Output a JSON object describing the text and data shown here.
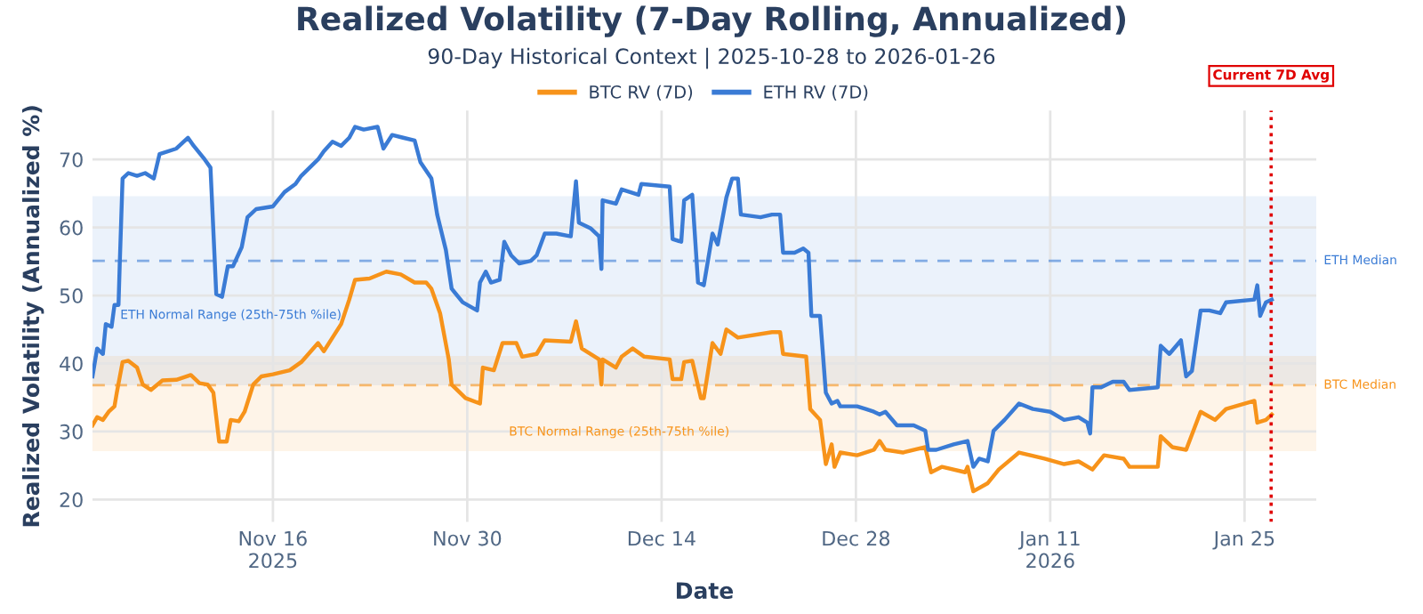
{
  "chart_data": {
    "type": "line",
    "title": "Realized Volatility (7-Day Rolling, Annualized)",
    "subtitle": "90-Day Historical Context | 2025-10-28 to 2026-01-26",
    "xlabel": "Date",
    "ylabel": "Realized Volatility (Annualized %)",
    "xlim": [
      "2025-11-03T00:00",
      "2026-01-30T04:00"
    ],
    "ylim": [
      16.7,
      77.2
    ],
    "yticks": [
      20,
      30,
      40,
      50,
      60,
      70
    ],
    "xticks": [
      {
        "value": "2025-11-16",
        "label": "Nov 16\n2025"
      },
      {
        "value": "2025-11-30",
        "label": "Nov 30"
      },
      {
        "value": "2025-12-14",
        "label": "Dec 14"
      },
      {
        "value": "2025-12-28",
        "label": "Dec 28"
      },
      {
        "value": "2026-01-11",
        "label": "Jan 11\n2026"
      },
      {
        "value": "2026-01-25",
        "label": "Jan 25"
      }
    ],
    "grid": true,
    "legend": "top",
    "line_style": "solid",
    "bands": [
      {
        "axis": "y",
        "from": 36.8,
        "to": 64.6,
        "label": "ETH Normal Range (25th-75th %ile)",
        "color": "#3a7bd5"
      },
      {
        "axis": "y",
        "from": 27.1,
        "to": 41.1,
        "label": "BTC Normal Range (25th-75th %ile)",
        "color": "#f7931a"
      }
    ],
    "ref_lines": [
      {
        "axis": "y",
        "value": 55.1,
        "label": "ETH Median",
        "color": "#3a7bd5",
        "line_style": "dashed"
      },
      {
        "axis": "y",
        "value": 36.8,
        "label": "BTC Median",
        "color": "#f7931a",
        "line_style": "dashed"
      },
      {
        "axis": "x",
        "value": "2026-01-26T22:00",
        "label": "Current 7D Avg",
        "color": "#e00000",
        "line_style": "dotted"
      }
    ],
    "series": [
      {
        "name": "BTC RV (7D)",
        "color": "#f7931a",
        "x": [
          "2025-11-03T00:00",
          "2025-11-03T08:00",
          "2025-11-03T18:00",
          "2025-11-04T04:00",
          "2025-11-04T14:00",
          "2025-11-04T18:00",
          "2025-11-05T04:00",
          "2025-11-05T14:00",
          "2025-11-06T05:00",
          "2025-11-06T15:00",
          "2025-11-07T05:00",
          "2025-11-08T01:00",
          "2025-11-09T01:00",
          "2025-11-10T02:00",
          "2025-11-10T17:00",
          "2025-11-11T07:00",
          "2025-11-11T17:00",
          "2025-11-12T03:00",
          "2025-11-12T16:00",
          "2025-11-12T23:00",
          "2025-11-13T13:00",
          "2025-11-13T23:00",
          "2025-11-14T14:00",
          "2025-11-15T04:00",
          "2025-11-16T00:00",
          "2025-11-17T05:00",
          "2025-11-18T01:00",
          "2025-11-19T06:00",
          "2025-11-19T16:00",
          "2025-11-20T07:00",
          "2025-11-20T22:00",
          "2025-11-21T12:00",
          "2025-11-21T22:00",
          "2025-11-22T23:00",
          "2025-11-24T04:00",
          "2025-11-25T05:00",
          "2025-11-26T05:00",
          "2025-11-27T01:00",
          "2025-11-27T10:00",
          "2025-11-28T01:00",
          "2025-11-28T16:00",
          "2025-11-28T21:00",
          "2025-11-29T21:00",
          "2025-11-30T22:00",
          "2025-12-01T03:00",
          "2025-12-01T22:00",
          "2025-12-02T13:00",
          "2025-12-03T13:00",
          "2025-12-03T23:00",
          "2025-12-05T00:00",
          "2025-12-05T14:00",
          "2025-12-07T11:00",
          "2025-12-07T20:00",
          "2025-12-08T06:00",
          "2025-12-09T12:00",
          "2025-12-09T16:00",
          "2025-12-09T18:00",
          "2025-12-10T17:00",
          "2025-12-11T03:00",
          "2025-12-11T22:00",
          "2025-12-12T18:00",
          "2025-12-14T14:00",
          "2025-12-14T19:00",
          "2025-12-15T10:00",
          "2025-12-15T15:00",
          "2025-12-16T05:00",
          "2025-12-16T20:00",
          "2025-12-17T01:00",
          "2025-12-17T16:00",
          "2025-12-18T06:00",
          "2025-12-18T16:00",
          "2025-12-19T12:00",
          "2025-12-21T23:00",
          "2025-12-22T13:00",
          "2025-12-22T18:00",
          "2025-12-24T10:00",
          "2025-12-24T17:00",
          "2025-12-25T10:00",
          "2025-12-25T20:00",
          "2025-12-26T06:00",
          "2025-12-26T11:00",
          "2025-12-26T21:00",
          "2025-12-28T02:00",
          "2025-12-29T07:00",
          "2025-12-29T17:00",
          "2025-12-30T03:00",
          "2025-12-31T09:00",
          "2026-01-02T00:00",
          "2026-01-02T10:00",
          "2026-01-03T05:00",
          "2026-01-04T21:00",
          "2026-01-05T01:00",
          "2026-01-05T11:00",
          "2026-01-06T12:00",
          "2026-01-07T07:00",
          "2026-01-08T18:00",
          "2026-01-10T14:00",
          "2026-01-12T00:00",
          "2026-01-13T01:00",
          "2026-01-14T01:00",
          "2026-01-14T21:00",
          "2026-01-16T07:00",
          "2026-01-16T17:00",
          "2026-01-18T18:00",
          "2026-01-18T23:00",
          "2026-01-19T19:00",
          "2026-01-20T19:00",
          "2026-01-21T20:00",
          "2026-01-22T21:00",
          "2026-01-23T16:00",
          "2026-01-25T17:00",
          "2026-01-25T22:00",
          "2026-01-26T13:00",
          "2026-01-26T23:00"
        ],
        "values": [
          30.9,
          32.1,
          31.7,
          32.9,
          33.7,
          35.7,
          40.2,
          40.4,
          39.4,
          36.9,
          36.1,
          37.5,
          37.6,
          38.3,
          37.1,
          36.9,
          35.7,
          28.5,
          28.5,
          31.7,
          31.5,
          32.9,
          36.9,
          38.1,
          38.4,
          39.0,
          40.2,
          43.0,
          41.8,
          43.8,
          45.8,
          49.4,
          52.3,
          52.5,
          53.5,
          53.1,
          51.9,
          51.9,
          51.0,
          47.4,
          40.6,
          36.9,
          34.9,
          34.1,
          39.4,
          39.0,
          43.0,
          43.0,
          41.0,
          41.4,
          43.4,
          43.2,
          46.2,
          42.2,
          40.6,
          36.9,
          40.6,
          39.4,
          41.0,
          42.2,
          41.0,
          40.6,
          37.7,
          37.7,
          40.2,
          40.4,
          34.9,
          34.9,
          43.0,
          41.4,
          45.0,
          43.8,
          44.6,
          44.6,
          41.4,
          41.0,
          33.3,
          31.7,
          25.2,
          28.1,
          24.8,
          26.9,
          26.5,
          27.3,
          28.6,
          27.3,
          26.9,
          27.7,
          24.0,
          24.8,
          24.0,
          24.8,
          21.2,
          22.4,
          24.4,
          26.9,
          26.0,
          25.2,
          25.6,
          24.4,
          26.5,
          26.0,
          24.8,
          24.8,
          29.3,
          27.7,
          27.3,
          32.9,
          31.7,
          33.3,
          34.5,
          31.3,
          31.7,
          32.5
        ]
      },
      {
        "name": "ETH RV (7D)",
        "color": "#3a7bd5",
        "x": [
          "2025-11-03T00:00",
          "2025-11-03T08:00",
          "2025-11-03T18:00",
          "2025-11-03T23:00",
          "2025-11-04T09:00",
          "2025-11-04T14:00",
          "2025-11-04T21:00",
          "2025-11-04T23:00",
          "2025-11-05T04:00",
          "2025-11-05T14:00",
          "2025-11-06T05:00",
          "2025-11-06T19:00",
          "2025-11-07T10:00",
          "2025-11-07T20:00",
          "2025-11-09T01:00",
          "2025-11-09T21:00",
          "2025-11-10T07:00",
          "2025-11-11T02:00",
          "2025-11-11T12:00",
          "2025-11-11T22:00",
          "2025-11-12T08:00",
          "2025-11-12T18:00",
          "2025-11-13T03:00",
          "2025-11-13T18:00",
          "2025-11-14T04:00",
          "2025-11-14T19:00",
          "2025-11-16T00:00",
          "2025-11-16T20:00",
          "2025-11-17T15:00",
          "2025-11-18T01:00",
          "2025-11-19T06:00",
          "2025-11-19T16:00",
          "2025-11-20T07:00",
          "2025-11-20T22:00",
          "2025-11-21T12:00",
          "2025-11-21T22:00",
          "2025-11-22T13:00",
          "2025-11-23T13:00",
          "2025-11-23T23:00",
          "2025-11-24T14:00",
          "2025-11-25T09:00",
          "2025-11-26T05:00",
          "2025-11-26T15:00",
          "2025-11-27T10:00",
          "2025-11-27T20:00",
          "2025-11-28T11:00",
          "2025-11-28T21:00",
          "2025-11-29T16:00",
          "2025-11-30T17:00",
          "2025-11-30T22:00",
          "2025-12-01T08:00",
          "2025-12-01T17:00",
          "2025-12-02T08:00",
          "2025-12-02T16:00",
          "2025-12-03T04:00",
          "2025-12-03T18:00",
          "2025-12-04T14:00",
          "2025-12-05T00:00",
          "2025-12-05T14:00",
          "2025-12-06T10:00",
          "2025-12-07T11:00",
          "2025-12-07T20:00",
          "2025-12-08T01:00",
          "2025-12-08T21:00",
          "2025-12-09T12:00",
          "2025-12-09T16:00",
          "2025-12-09T18:00",
          "2025-12-10T17:00",
          "2025-12-11T03:00",
          "2025-12-12T08:00",
          "2025-12-12T13:00",
          "2025-12-14T14:00",
          "2025-12-14T19:00",
          "2025-12-15T10:00",
          "2025-12-15T15:00",
          "2025-12-16T05:00",
          "2025-12-16T15:00",
          "2025-12-17T01:00",
          "2025-12-17T16:00",
          "2025-12-18T01:00",
          "2025-12-18T16:00",
          "2025-12-19T02:00",
          "2025-12-19T12:00",
          "2025-12-19T17:00",
          "2025-12-21T03:00",
          "2025-12-21T23:00",
          "2025-12-22T13:00",
          "2025-12-22T18:00",
          "2025-12-23T14:00",
          "2025-12-24T05:00",
          "2025-12-24T14:00",
          "2025-12-24T19:00",
          "2025-12-25T10:00",
          "2025-12-25T20:00",
          "2025-12-26T06:00",
          "2025-12-26T16:00",
          "2025-12-26T21:00",
          "2025-12-28T02:00",
          "2025-12-28T17:00",
          "2025-12-29T07:00",
          "2025-12-29T17:00",
          "2025-12-30T03:00",
          "2025-12-30T23:00",
          "2026-01-01T04:00",
          "2026-01-02T00:00",
          "2026-01-02T05:00",
          "2026-01-02T19:00",
          "2026-01-04T01:00",
          "2026-01-05T01:00",
          "2026-01-05T11:00",
          "2026-01-05T21:00",
          "2026-01-06T12:00",
          "2026-01-06T22:00",
          "2026-01-07T17:00",
          "2026-01-08T18:00",
          "2026-01-09T18:00",
          "2026-01-11T00:00",
          "2026-01-12T00:00",
          "2026-01-13T01:00",
          "2026-01-13T16:00",
          "2026-01-13T21:00",
          "2026-01-14T01:00",
          "2026-01-14T16:00",
          "2026-01-15T12:00",
          "2026-01-16T07:00",
          "2026-01-16T17:00",
          "2026-01-18T18:00",
          "2026-01-18T23:00",
          "2026-01-19T14:00",
          "2026-01-20T10:00",
          "2026-01-20T19:00",
          "2026-01-21T05:00",
          "2026-01-21T20:00",
          "2026-01-22T11:00",
          "2026-01-23T06:00",
          "2026-01-23T16:00",
          "2026-01-25T17:00",
          "2026-01-25T22:00",
          "2026-01-26T03:00",
          "2026-01-26T13:00",
          "2026-01-26T23:00"
        ],
        "values": [
          38.1,
          42.2,
          41.4,
          45.8,
          45.4,
          48.6,
          48.6,
          54.3,
          67.2,
          68.0,
          67.6,
          68.0,
          67.2,
          70.8,
          71.6,
          73.2,
          72.0,
          70.0,
          68.8,
          50.2,
          49.8,
          54.3,
          54.3,
          57.1,
          61.5,
          62.7,
          63.1,
          65.2,
          66.4,
          67.6,
          70.0,
          71.2,
          72.6,
          72.0,
          73.2,
          74.8,
          74.4,
          74.8,
          71.6,
          73.6,
          73.2,
          72.8,
          69.6,
          67.2,
          61.9,
          56.7,
          51.0,
          49.0,
          47.8,
          51.9,
          53.5,
          51.9,
          52.3,
          57.9,
          55.9,
          54.7,
          55.1,
          55.9,
          59.1,
          59.1,
          58.7,
          66.8,
          60.7,
          59.9,
          58.7,
          53.9,
          64.0,
          63.5,
          65.6,
          64.8,
          66.4,
          66.0,
          58.3,
          57.9,
          64.0,
          64.8,
          51.9,
          51.5,
          59.1,
          57.5,
          64.4,
          67.2,
          67.2,
          61.9,
          61.5,
          61.9,
          61.9,
          56.3,
          56.3,
          56.9,
          56.3,
          47.0,
          47.0,
          35.7,
          34.1,
          34.5,
          33.7,
          33.7,
          33.3,
          32.9,
          32.5,
          32.9,
          30.9,
          30.9,
          30.1,
          27.3,
          27.3,
          28.1,
          28.6,
          24.8,
          26.0,
          25.6,
          30.1,
          31.7,
          34.1,
          33.3,
          32.9,
          31.7,
          32.1,
          31.3,
          29.7,
          36.5,
          36.5,
          37.3,
          37.3,
          36.1,
          36.5,
          42.6,
          41.4,
          43.4,
          38.1,
          38.9,
          47.8,
          47.8,
          47.4,
          49.0,
          49.4,
          51.5,
          47.0,
          49.0,
          49.4
        ]
      }
    ]
  }
}
